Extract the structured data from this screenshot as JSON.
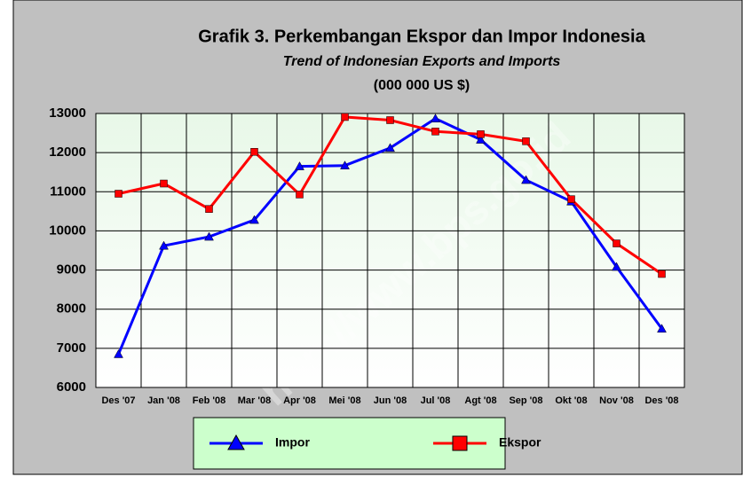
{
  "chart_data": {
    "type": "line",
    "title": "Grafik  3.  Perkembangan Ekspor dan Impor Indonesia",
    "subtitle": "Trend of Indonesian Exports and Imports",
    "unit_label": "(000 000 US $)",
    "watermark": "http://www.bps.go.id",
    "categories": [
      "Des '07",
      "Jan '08",
      "Feb '08",
      "Mar '08",
      "Apr '08",
      "Mei '08",
      "Jun '08",
      "Jul '08",
      "Agt '08",
      "Sep '08",
      "Okt '08",
      "Nov '08",
      "Des '08"
    ],
    "series": [
      {
        "name": "Impor",
        "color": "#0000ff",
        "marker": "triangle",
        "values": [
          6850,
          9620,
          9850,
          10280,
          11650,
          11670,
          12120,
          12870,
          12330,
          11300,
          10750,
          9080,
          7500
        ]
      },
      {
        "name": "Ekspor",
        "color": "#ff0000",
        "marker": "square",
        "values": [
          10950,
          11210,
          10560,
          12020,
          10930,
          12910,
          12830,
          12540,
          12470,
          12290,
          10810,
          9680,
          8900
        ]
      }
    ],
    "ylim": [
      6000,
      13000
    ],
    "yticks": [
      6000,
      7000,
      8000,
      9000,
      10000,
      11000,
      12000,
      13000
    ],
    "grid": true,
    "legend": "bottom"
  }
}
